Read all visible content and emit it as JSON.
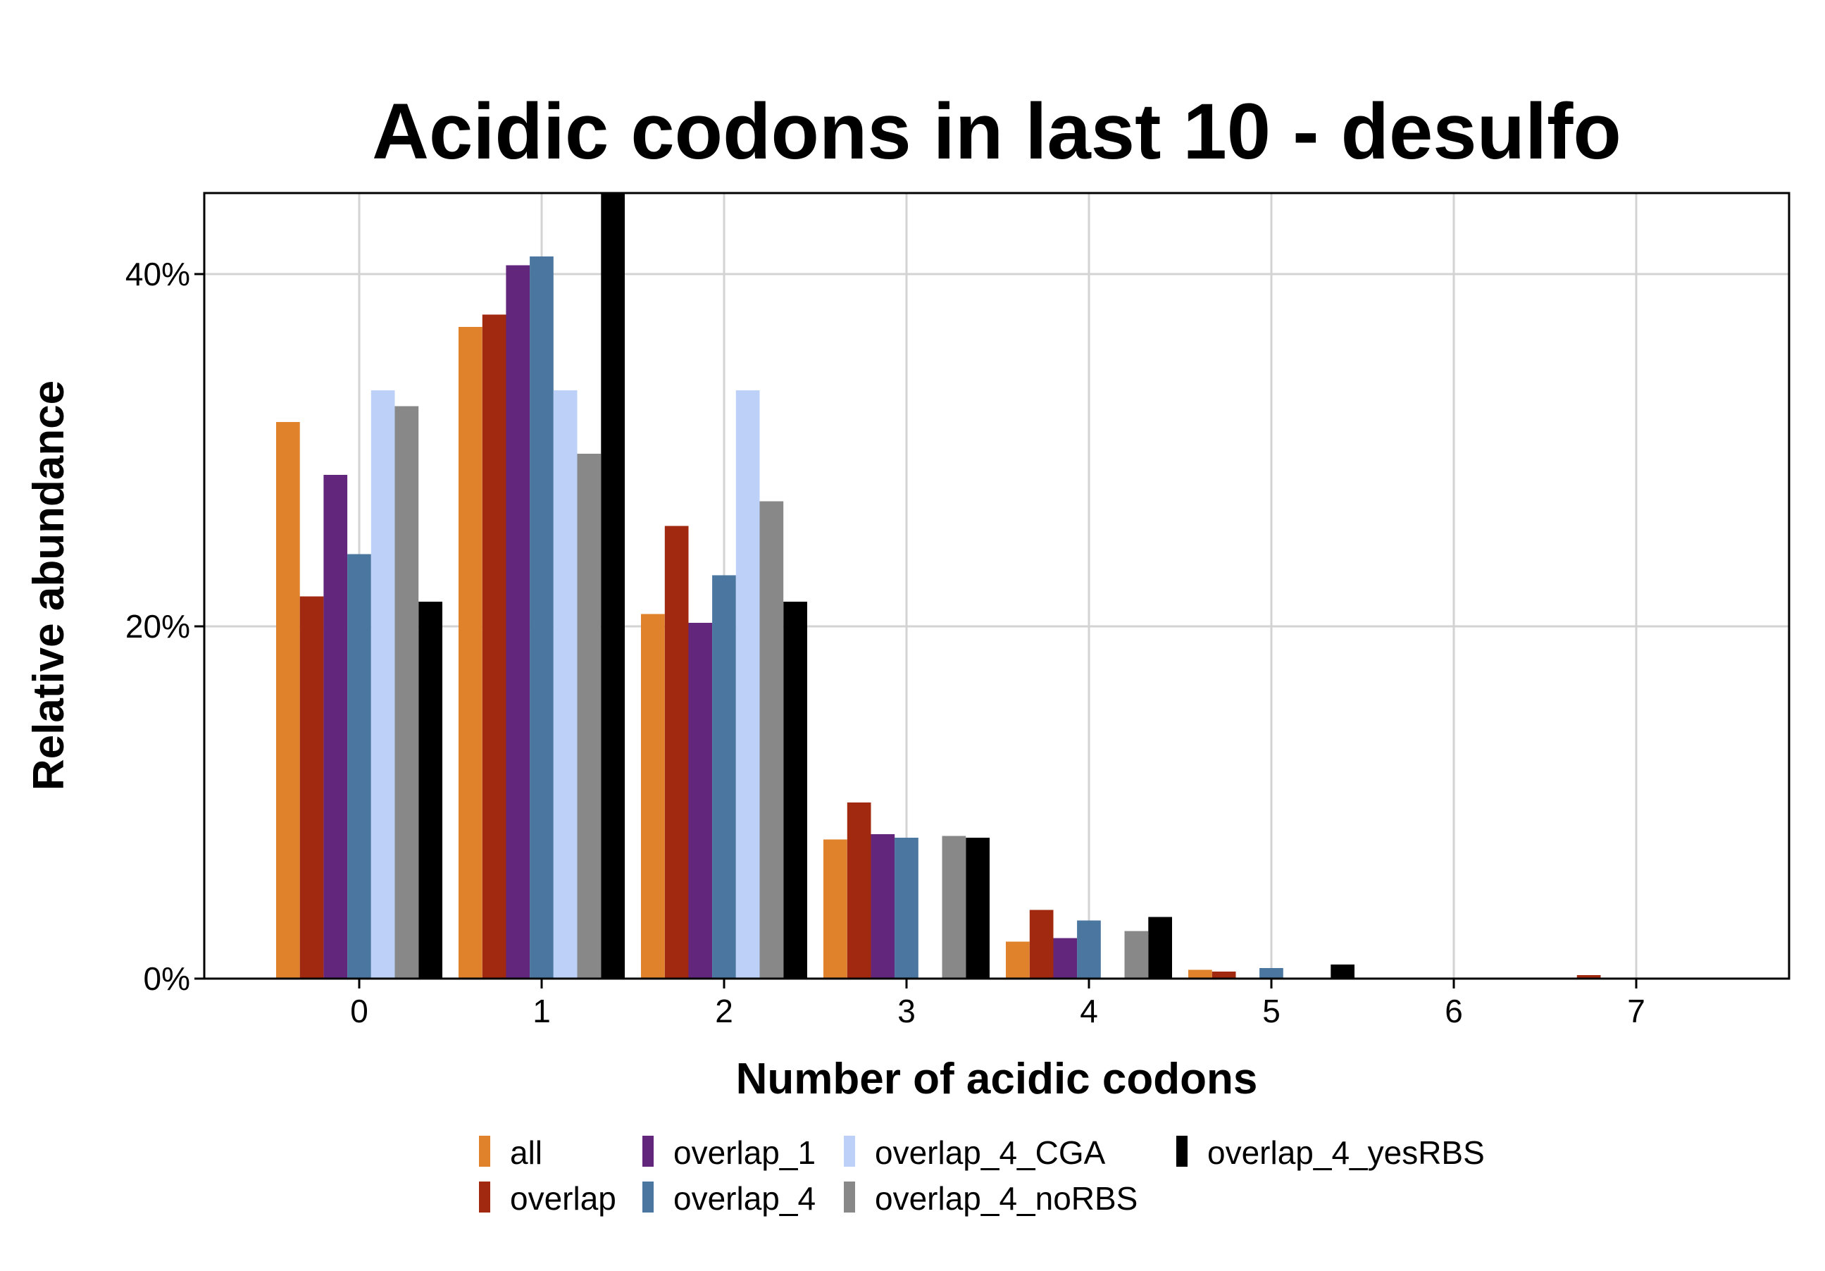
{
  "chart_data": {
    "type": "bar",
    "title": "Acidic codons in last 10 - desulfo",
    "xlabel": "Number of acidic codons",
    "ylabel": "Relative abundance",
    "categories": [
      "0",
      "1",
      "2",
      "3",
      "4",
      "5",
      "6",
      "7"
    ],
    "ylim": [
      0,
      44.6
    ],
    "yticks": [
      0,
      20,
      40
    ],
    "ytick_labels": [
      "0%",
      "20%",
      "40%"
    ],
    "grid": true,
    "legend_position": "bottom",
    "series": [
      {
        "name": "all",
        "color": "#E0812B",
        "values": [
          31.6,
          37.0,
          20.7,
          7.9,
          2.1,
          0.5,
          0.0,
          0.0
        ]
      },
      {
        "name": "overlap",
        "color": "#A0290F",
        "values": [
          21.7,
          37.7,
          25.7,
          10.0,
          3.9,
          0.4,
          0.0,
          0.2
        ]
      },
      {
        "name": "overlap_1",
        "color": "#62267D",
        "values": [
          28.6,
          40.5,
          20.2,
          8.2,
          2.3,
          0.0,
          0.0,
          0.0
        ]
      },
      {
        "name": "overlap_4",
        "color": "#4A76A0",
        "values": [
          24.1,
          41.0,
          22.9,
          8.0,
          3.3,
          0.6,
          0.0,
          0.0
        ]
      },
      {
        "name": "overlap_4_CGA",
        "color": "#BDD0F7",
        "values": [
          33.4,
          33.4,
          33.4,
          0.0,
          0.0,
          0.0,
          0.0,
          0.0
        ]
      },
      {
        "name": "overlap_4_noRBS",
        "color": "#888888",
        "values": [
          32.5,
          29.8,
          27.1,
          8.1,
          2.7,
          0.0,
          0.0,
          0.0
        ]
      },
      {
        "name": "overlap_4_yesRBS",
        "color": "#000000",
        "values": [
          21.4,
          50.0,
          21.4,
          8.0,
          3.5,
          0.8,
          0.0,
          0.0
        ]
      }
    ]
  }
}
